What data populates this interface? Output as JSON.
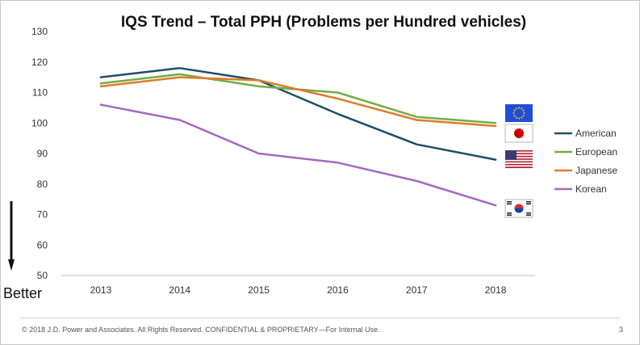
{
  "chart_data": {
    "type": "line",
    "title": "IQS Trend – Total PPH (Problems per Hundred vehicles)",
    "xlabel": "",
    "ylabel": "",
    "categories": [
      "2013",
      "2014",
      "2015",
      "2016",
      "2017",
      "2018"
    ],
    "ylim": [
      50,
      130
    ],
    "yticks": [
      50,
      60,
      70,
      80,
      90,
      100,
      110,
      120,
      130
    ],
    "grid": false,
    "legend_position": "right",
    "series": [
      {
        "name": "American",
        "color": "#1F4E68",
        "values": [
          115,
          118,
          114,
          103,
          93,
          88
        ],
        "flag": "us-flag-icon"
      },
      {
        "name": "European",
        "color": "#70AD47",
        "values": [
          113,
          116,
          112,
          110,
          102,
          100
        ],
        "flag": "eu-flag-icon"
      },
      {
        "name": "Japanese",
        "color": "#E07B29",
        "values": [
          112,
          115,
          114,
          108,
          101,
          99
        ],
        "flag": "japan-flag-icon"
      },
      {
        "name": "Korean",
        "color": "#A569BD",
        "values": [
          106,
          101,
          90,
          87,
          81,
          73
        ],
        "flag": "korea-flag-icon"
      }
    ]
  },
  "annotation": {
    "better_label": "Better"
  },
  "footer": {
    "copyright": "© 2018 J.D. Power and Associates. All Rights Reserved. CONFIDENTIAL & PROPRIETARY—For Internal Use.",
    "page_number": "3"
  },
  "colors": {
    "axis": "#bfbfbf",
    "text": "#333333",
    "title": "#111111"
  }
}
